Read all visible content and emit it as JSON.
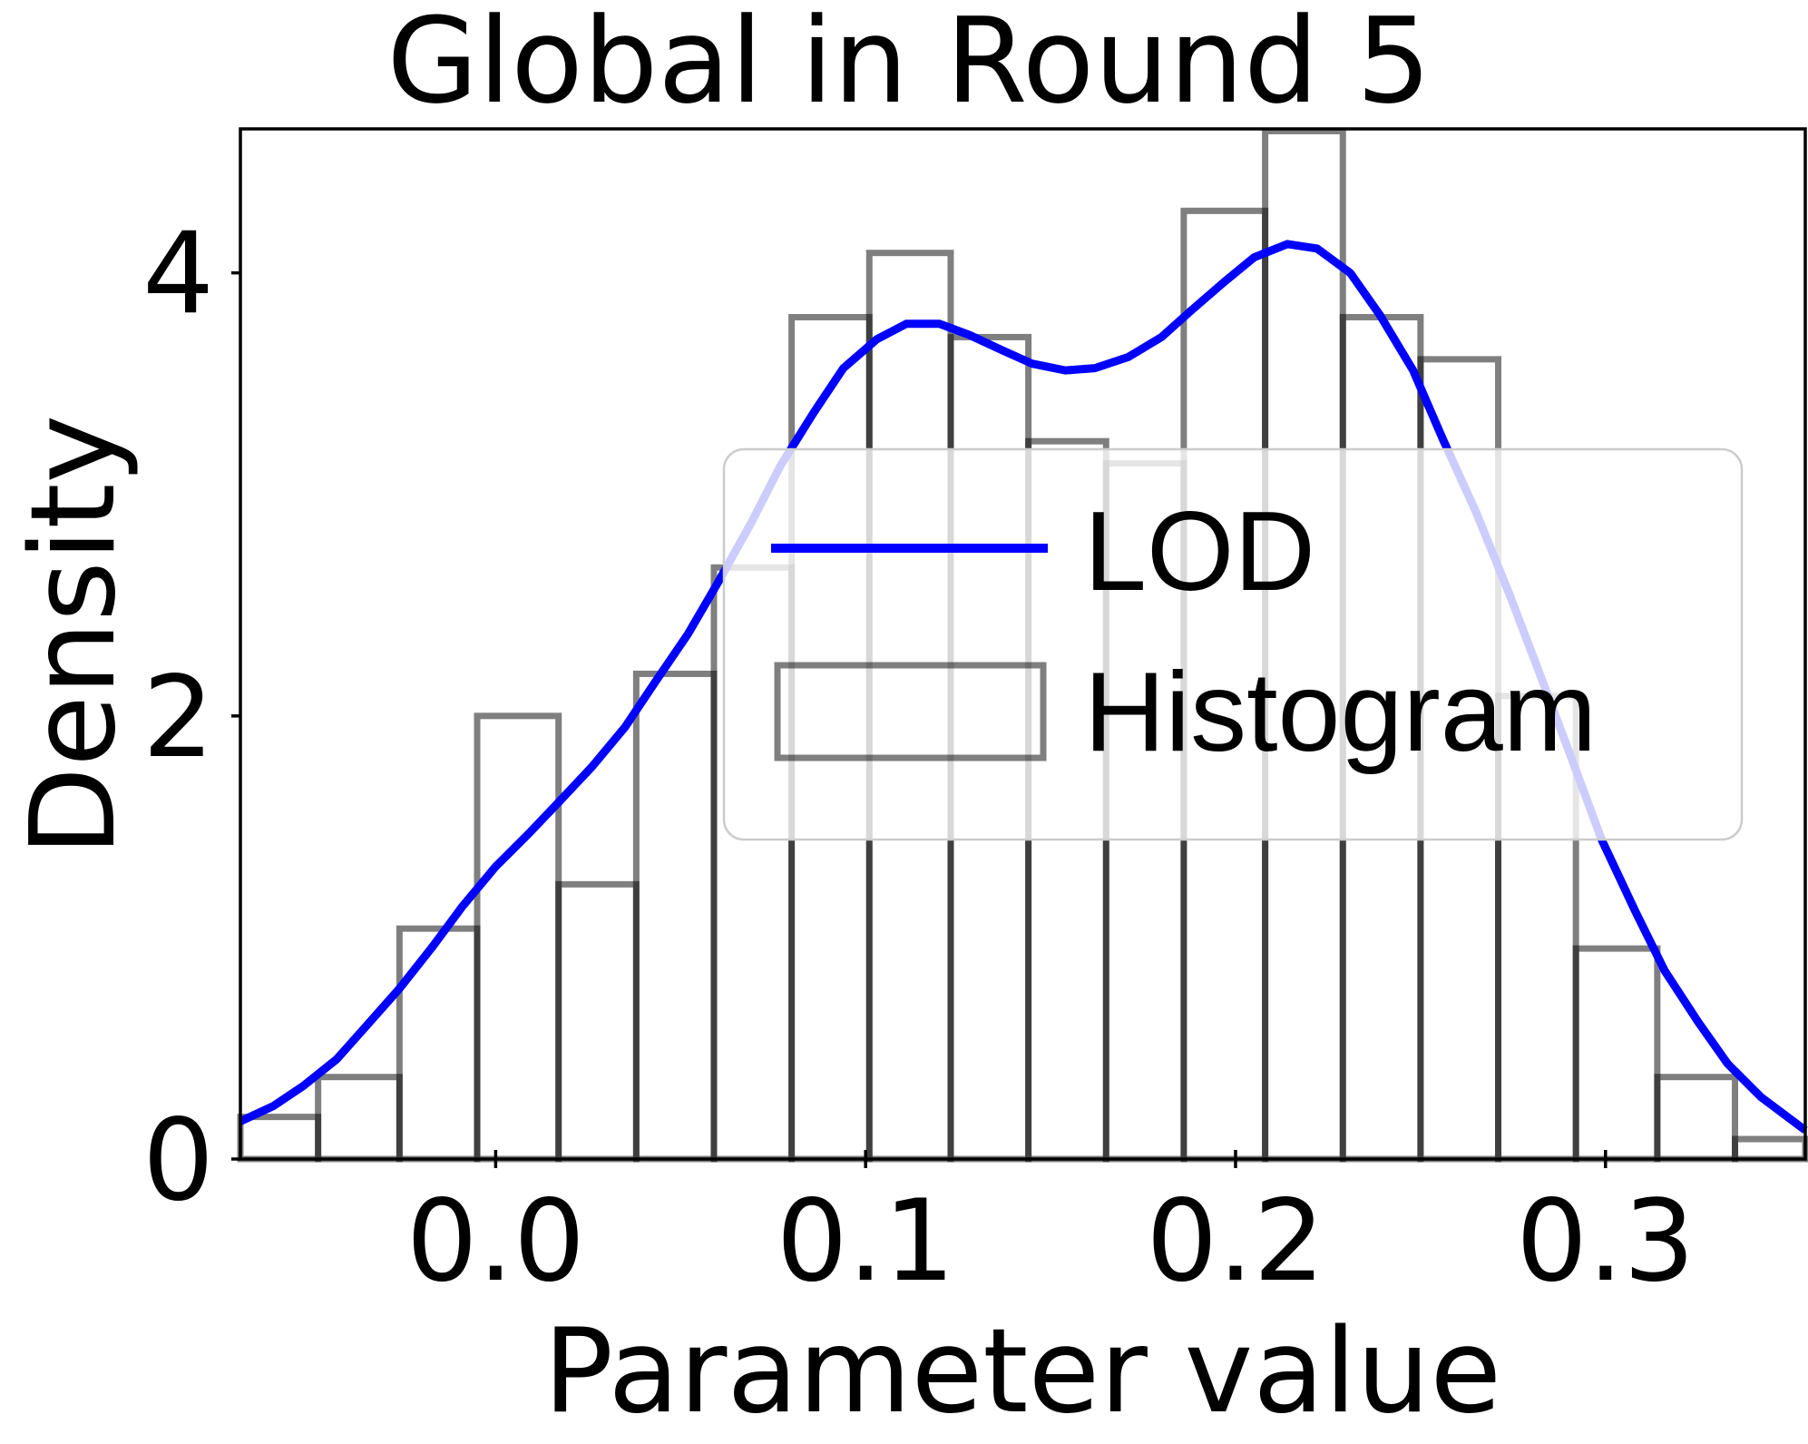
{
  "chart_data": {
    "type": "bar",
    "title": "Global in Round 5",
    "xlabel": "Parameter value",
    "ylabel": "Density",
    "xlim": [
      -0.069,
      0.354
    ],
    "ylim": [
      0,
      4.65
    ],
    "xticks": [
      0.0,
      0.1,
      0.2,
      0.3
    ],
    "xtick_labels": [
      "0.0",
      "0.1",
      "0.2",
      "0.3"
    ],
    "yticks": [
      0,
      2,
      4
    ],
    "ytick_labels": [
      "0",
      "2",
      "4"
    ],
    "grid": false,
    "legend": {
      "placement": "center-right",
      "entries": [
        {
          "label": "LOD",
          "kind": "line"
        },
        {
          "label": "Histogram",
          "kind": "bar"
        }
      ]
    },
    "series": [
      {
        "name": "Histogram",
        "kind": "histogram",
        "color": "#000000",
        "opacity": 0.5,
        "bins": [
          {
            "x0": -0.069,
            "x1": -0.048,
            "value": 0.19
          },
          {
            "x0": -0.048,
            "x1": -0.026,
            "value": 0.37
          },
          {
            "x0": -0.026,
            "x1": -0.005,
            "value": 1.04
          },
          {
            "x0": -0.005,
            "x1": 0.017,
            "value": 2.0
          },
          {
            "x0": 0.017,
            "x1": 0.038,
            "value": 1.24
          },
          {
            "x0": 0.038,
            "x1": 0.059,
            "value": 2.19
          },
          {
            "x0": 0.059,
            "x1": 0.08,
            "value": 2.67
          },
          {
            "x0": 0.08,
            "x1": 0.101,
            "value": 3.8
          },
          {
            "x0": 0.101,
            "x1": 0.123,
            "value": 4.09
          },
          {
            "x0": 0.123,
            "x1": 0.144,
            "value": 3.71
          },
          {
            "x0": 0.144,
            "x1": 0.165,
            "value": 3.24
          },
          {
            "x0": 0.165,
            "x1": 0.186,
            "value": 3.14
          },
          {
            "x0": 0.186,
            "x1": 0.208,
            "value": 4.28
          },
          {
            "x0": 0.208,
            "x1": 0.229,
            "value": 4.64
          },
          {
            "x0": 0.229,
            "x1": 0.25,
            "value": 3.8
          },
          {
            "x0": 0.25,
            "x1": 0.271,
            "value": 3.61
          },
          {
            "x0": 0.271,
            "x1": 0.292,
            "value": 2.09
          },
          {
            "x0": 0.292,
            "x1": 0.314,
            "value": 0.95
          },
          {
            "x0": 0.314,
            "x1": 0.335,
            "value": 0.37
          },
          {
            "x0": 0.335,
            "x1": 0.354,
            "value": 0.09
          }
        ]
      },
      {
        "name": "LOD",
        "kind": "line",
        "color": "#0000ff",
        "points": [
          [
            -0.069,
            0.17
          ],
          [
            -0.06,
            0.24
          ],
          [
            -0.052,
            0.33
          ],
          [
            -0.043,
            0.45
          ],
          [
            -0.035,
            0.6
          ],
          [
            -0.026,
            0.77
          ],
          [
            -0.017,
            0.96
          ],
          [
            -0.009,
            1.14
          ],
          [
            0.0,
            1.32
          ],
          [
            0.009,
            1.47
          ],
          [
            0.017,
            1.61
          ],
          [
            0.026,
            1.77
          ],
          [
            0.035,
            1.95
          ],
          [
            0.043,
            2.15
          ],
          [
            0.052,
            2.37
          ],
          [
            0.06,
            2.6
          ],
          [
            0.069,
            2.87
          ],
          [
            0.077,
            3.13
          ],
          [
            0.086,
            3.37
          ],
          [
            0.094,
            3.57
          ],
          [
            0.103,
            3.7
          ],
          [
            0.111,
            3.77
          ],
          [
            0.12,
            3.77
          ],
          [
            0.128,
            3.72
          ],
          [
            0.137,
            3.65
          ],
          [
            0.145,
            3.59
          ],
          [
            0.154,
            3.56
          ],
          [
            0.162,
            3.57
          ],
          [
            0.171,
            3.62
          ],
          [
            0.18,
            3.71
          ],
          [
            0.188,
            3.83
          ],
          [
            0.197,
            3.96
          ],
          [
            0.205,
            4.07
          ],
          [
            0.214,
            4.13
          ],
          [
            0.222,
            4.11
          ],
          [
            0.231,
            4.0
          ],
          [
            0.239,
            3.81
          ],
          [
            0.248,
            3.56
          ],
          [
            0.256,
            3.25
          ],
          [
            0.265,
            2.92
          ],
          [
            0.274,
            2.55
          ],
          [
            0.282,
            2.2
          ],
          [
            0.291,
            1.8
          ],
          [
            0.299,
            1.44
          ],
          [
            0.308,
            1.12
          ],
          [
            0.316,
            0.85
          ],
          [
            0.325,
            0.62
          ],
          [
            0.333,
            0.43
          ],
          [
            0.342,
            0.28
          ],
          [
            0.354,
            0.13
          ]
        ]
      }
    ]
  }
}
